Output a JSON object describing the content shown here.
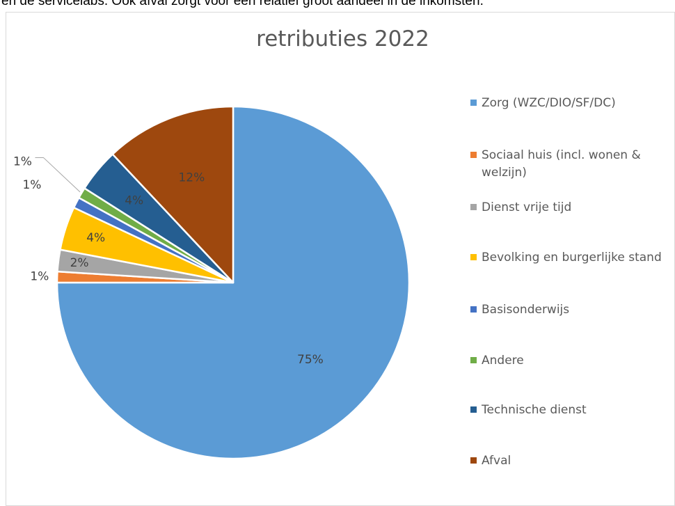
{
  "top_text": "en de servicelabs. Ook afval zorgt voor een relatief groot aandeel in de inkomsten.",
  "chart_data": {
    "type": "pie",
    "title": "retributies 2022",
    "legend_position": "right",
    "slices": [
      {
        "name": "Zorg (WZC/DIO/SF/DC)",
        "value": 75,
        "label": "75%",
        "color": "#5b9bd5"
      },
      {
        "name": "Sociaal huis (incl. wonen & welzijn)",
        "value": 1,
        "label": "1%",
        "color": "#ed7d31"
      },
      {
        "name": "Dienst vrije tijd",
        "value": 2,
        "label": "2%",
        "color": "#a5a5a5"
      },
      {
        "name": "Bevolking en burgerlijke stand",
        "value": 4,
        "label": "4%",
        "color": "#ffc000"
      },
      {
        "name": "Basisonderwijs",
        "value": 1,
        "label": "1%",
        "color": "#4472c4"
      },
      {
        "name": "Andere",
        "value": 1,
        "label": "1%",
        "color": "#70ad47"
      },
      {
        "name": "Technische dienst",
        "value": 4,
        "label": "4%",
        "color": "#255e91"
      },
      {
        "name": "Afval",
        "value": 12,
        "label": "12%",
        "color": "#9e480e"
      }
    ]
  }
}
